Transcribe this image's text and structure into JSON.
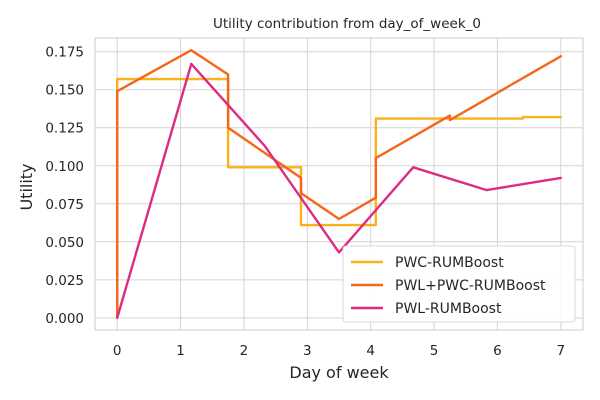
{
  "chart_data": {
    "type": "line",
    "title": "Utility contribution from day_of_week_0",
    "xlabel": "Day of week",
    "ylabel": "Utility",
    "xlim": [
      -0.35,
      7.35
    ],
    "ylim": [
      -0.008,
      0.184
    ],
    "xticks": [
      0,
      1,
      2,
      3,
      4,
      5,
      6,
      7
    ],
    "xtick_labels": [
      "0",
      "1",
      "2",
      "3",
      "4",
      "5",
      "6",
      "7"
    ],
    "yticks": [
      0.0,
      0.025,
      0.05,
      0.075,
      0.1,
      0.125,
      0.15,
      0.175
    ],
    "ytick_labels": [
      "0.000",
      "0.025",
      "0.050",
      "0.075",
      "0.100",
      "0.125",
      "0.150",
      "0.175"
    ],
    "grid": true,
    "legend_position": "bottom-right",
    "series": [
      {
        "name": "PWC-RUMBoost",
        "color": "#fbb117",
        "x": [
          0,
          0,
          1.75,
          1.75,
          2.9,
          2.9,
          4.08,
          4.08,
          5.25,
          5.25,
          6.4,
          6.4,
          7
        ],
        "y": [
          0.0,
          0.157,
          0.157,
          0.099,
          0.099,
          0.061,
          0.061,
          0.131,
          0.131,
          0.131,
          0.131,
          0.132,
          0.132
        ]
      },
      {
        "name": "PWL+PWC-RUMBoost",
        "color": "#f4661b",
        "x": [
          0,
          0,
          1.17,
          1.75,
          1.75,
          2.9,
          2.9,
          3.5,
          4.08,
          4.08,
          5.25,
          5.25,
          7
        ],
        "y": [
          0.0,
          0.149,
          0.176,
          0.16,
          0.125,
          0.092,
          0.082,
          0.065,
          0.079,
          0.105,
          0.133,
          0.13,
          0.172
        ]
      },
      {
        "name": "PWL-RUMBoost",
        "color": "#dc2b83",
        "x": [
          0,
          1.17,
          2.33,
          3.5,
          4.67,
          5.83,
          7
        ],
        "y": [
          0.0,
          0.167,
          0.113,
          0.043,
          0.099,
          0.084,
          0.092
        ]
      }
    ]
  }
}
